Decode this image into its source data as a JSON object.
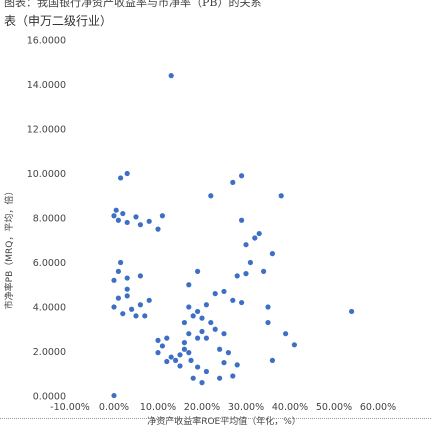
{
  "figure": {
    "caption_top": "图表：我国银行净资产收益率与市净率（PB）的关系",
    "caption": "表（申万二级行业）"
  },
  "chart_data": {
    "type": "scatter",
    "title": "",
    "xlabel": "净资产收益率ROE平均值（年化，%）",
    "ylabel": "市净率PB（MRQ，平均，倍）",
    "xlim": [
      -0.1,
      0.6
    ],
    "ylim": [
      0,
      16
    ],
    "x_ticks": [
      "-10.00%",
      "0.00%",
      "10.00%",
      "20.00%",
      "30.00%",
      "40.00%",
      "50.00%",
      "60.00%"
    ],
    "y_ticks": [
      "0.0000",
      "2.0000",
      "4.0000",
      "6.0000",
      "8.0000",
      "10.0000",
      "12.0000",
      "14.0000",
      "16.0000"
    ],
    "grid": false,
    "legend": "none",
    "marker_color": "#3d6fc4",
    "series": [
      {
        "points": [
          [
            0.0,
            0.02
          ],
          [
            0.0,
            4.0
          ],
          [
            0.01,
            4.4
          ],
          [
            0.02,
            3.7
          ],
          [
            0.03,
            4.8
          ],
          [
            0.04,
            3.9
          ],
          [
            0.03,
            4.5
          ],
          [
            0.06,
            4.1
          ],
          [
            0.07,
            3.6
          ],
          [
            0.08,
            4.3
          ],
          [
            0.05,
            3.6
          ],
          [
            0.0,
            5.2
          ],
          [
            0.01,
            5.6
          ],
          [
            0.015,
            6.0
          ],
          [
            0.03,
            5.3
          ],
          [
            0.06,
            5.4
          ],
          [
            0.0,
            8.1
          ],
          [
            0.005,
            8.35
          ],
          [
            0.01,
            7.9
          ],
          [
            0.02,
            8.2
          ],
          [
            0.03,
            7.8
          ],
          [
            0.05,
            8.05
          ],
          [
            0.06,
            7.7
          ],
          [
            0.08,
            7.85
          ],
          [
            0.1,
            7.5
          ],
          [
            0.11,
            8.1
          ],
          [
            0.015,
            9.8
          ],
          [
            0.03,
            10.0
          ],
          [
            0.13,
            14.4
          ],
          [
            0.1,
            2.5
          ],
          [
            0.11,
            2.25
          ],
          [
            0.12,
            2.6
          ],
          [
            0.1,
            1.95
          ],
          [
            0.14,
            1.6
          ],
          [
            0.15,
            1.35
          ],
          [
            0.15,
            1.85
          ],
          [
            0.16,
            2.1
          ],
          [
            0.13,
            1.75
          ],
          [
            0.12,
            1.55
          ],
          [
            0.17,
            1.95
          ],
          [
            0.175,
            1.6
          ],
          [
            0.18,
            3.6
          ],
          [
            0.2,
            3.5
          ],
          [
            0.17,
            4.0
          ],
          [
            0.21,
            4.1
          ],
          [
            0.19,
            3.8
          ],
          [
            0.22,
            3.3
          ],
          [
            0.2,
            2.9
          ],
          [
            0.16,
            3.3
          ],
          [
            0.23,
            3.0
          ],
          [
            0.21,
            2.6
          ],
          [
            0.17,
            2.8
          ],
          [
            0.19,
            2.6
          ],
          [
            0.16,
            2.4
          ],
          [
            0.24,
            2.1
          ],
          [
            0.26,
            1.95
          ],
          [
            0.25,
            2.8
          ],
          [
            0.18,
            0.8
          ],
          [
            0.19,
            1.3
          ],
          [
            0.21,
            1.1
          ],
          [
            0.24,
            0.8
          ],
          [
            0.25,
            1.5
          ],
          [
            0.27,
            0.9
          ],
          [
            0.28,
            1.4
          ],
          [
            0.2,
            0.6
          ],
          [
            0.17,
            5.0
          ],
          [
            0.19,
            5.6
          ],
          [
            0.23,
            4.6
          ],
          [
            0.25,
            4.7
          ],
          [
            0.27,
            4.3
          ],
          [
            0.29,
            4.2
          ],
          [
            0.28,
            5.4
          ],
          [
            0.3,
            5.5
          ],
          [
            0.31,
            6.0
          ],
          [
            0.34,
            5.6
          ],
          [
            0.3,
            6.8
          ],
          [
            0.32,
            7.1
          ],
          [
            0.33,
            7.3
          ],
          [
            0.29,
            7.9
          ],
          [
            0.22,
            9.0
          ],
          [
            0.27,
            9.6
          ],
          [
            0.29,
            9.9
          ],
          [
            0.38,
            9.0
          ],
          [
            0.36,
            6.4
          ],
          [
            0.35,
            4.0
          ],
          [
            0.35,
            3.3
          ],
          [
            0.39,
            2.8
          ],
          [
            0.41,
            2.3
          ],
          [
            0.36,
            1.6
          ],
          [
            0.54,
            3.8
          ]
        ]
      }
    ]
  }
}
